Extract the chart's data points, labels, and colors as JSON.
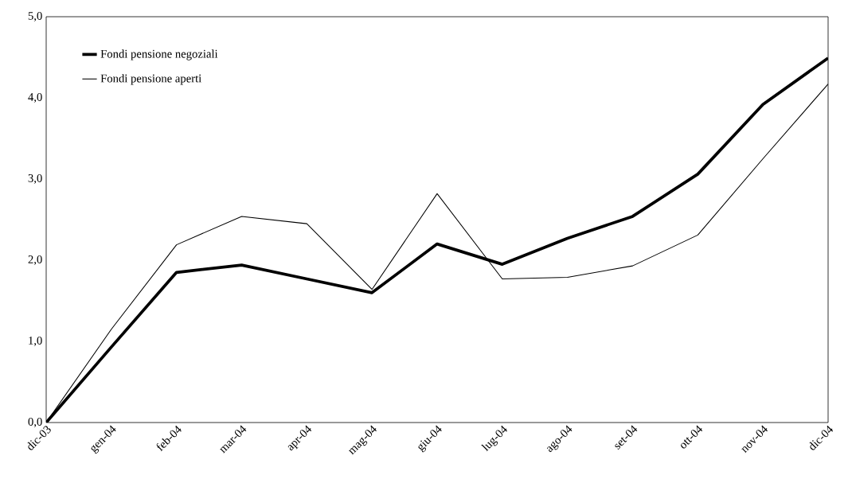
{
  "chart_data": {
    "type": "line",
    "categories": [
      "dic-03",
      "gen-04",
      "feb-04",
      "mar-04",
      "apr-04",
      "mag-04",
      "giu-04",
      "lug-04",
      "ago-04",
      "set-04",
      "ott-04",
      "nov-04",
      "dic-04"
    ],
    "series": [
      {
        "name": "Fondi pensione negoziali",
        "color": "#000000",
        "values": [
          0,
          0.93,
          1.85,
          1.94,
          1.77,
          1.6,
          2.2,
          1.95,
          2.27,
          2.54,
          3.06,
          3.92,
          4.49
        ]
      },
      {
        "name": "Fondi pensione aperti",
        "color": "#000000",
        "values": [
          0,
          1.15,
          2.19,
          2.54,
          2.45,
          1.64,
          2.82,
          1.77,
          1.79,
          1.93,
          2.31,
          3.25,
          4.17
        ]
      }
    ],
    "ylim": [
      0,
      5
    ],
    "yticks": [
      {
        "value": 0,
        "label": "0,0"
      },
      {
        "value": 1,
        "label": "1,0"
      },
      {
        "value": 2,
        "label": "2,0"
      },
      {
        "value": 3,
        "label": "3,0"
      },
      {
        "value": 4,
        "label": "4,0"
      },
      {
        "value": 5,
        "label": "5,0"
      }
    ],
    "grid": false,
    "legend": "top left",
    "marker": "none",
    "line_style": "solid"
  }
}
